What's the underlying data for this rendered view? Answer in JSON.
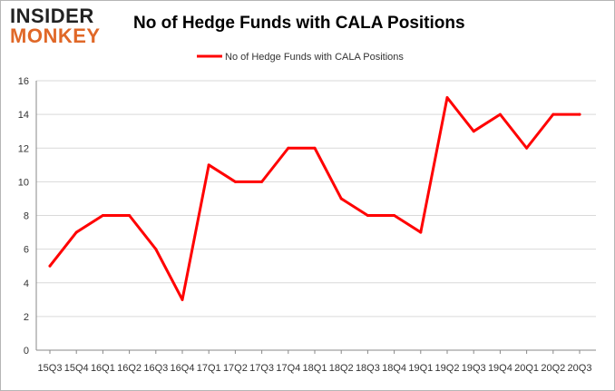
{
  "logo": {
    "line1": "INSIDER",
    "line2": "MONKEY"
  },
  "colors": {
    "series": "#ff0000",
    "grid": "#d9d9d9",
    "axis": "#888888",
    "logo_dark": "#222222",
    "logo_accent": "#e06828"
  },
  "chart_data": {
    "type": "line",
    "title": "No of Hedge Funds with CALA Positions",
    "xlabel": "",
    "ylabel": "",
    "ylim": [
      0,
      16
    ],
    "yticks": [
      0,
      2,
      4,
      6,
      8,
      10,
      12,
      14,
      16
    ],
    "grid": true,
    "legend_position": "top-center",
    "categories": [
      "15Q3",
      "15Q4",
      "16Q1",
      "16Q2",
      "16Q3",
      "16Q4",
      "17Q1",
      "17Q2",
      "17Q3",
      "17Q4",
      "18Q1",
      "18Q2",
      "18Q3",
      "18Q4",
      "19Q1",
      "19Q2",
      "19Q3",
      "19Q4",
      "20Q1",
      "20Q2",
      "20Q3"
    ],
    "series": [
      {
        "name": "No of Hedge Funds with CALA Positions",
        "values": [
          5,
          7,
          8,
          8,
          6,
          3,
          11,
          10,
          10,
          12,
          12,
          9,
          8,
          8,
          7,
          15,
          13,
          14,
          12,
          14,
          14
        ]
      }
    ]
  }
}
